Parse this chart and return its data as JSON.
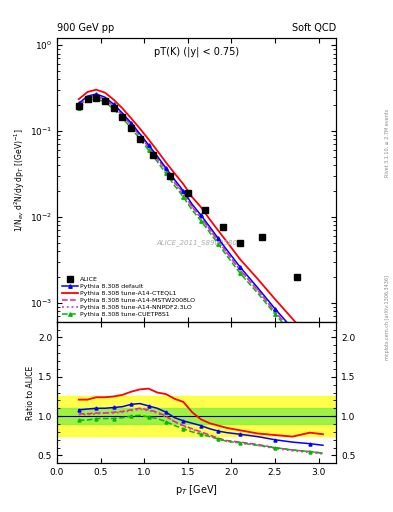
{
  "title_left": "900 GeV pp",
  "title_right": "Soft QCD",
  "inner_title": "pT(K) (|y| < 0.75)",
  "ylabel_main": "1/N$_{ev}$ d$^2$N/dy dp$_T$ [(GeV)$^{-1}$]",
  "ylabel_ratio": "Ratio to ALICE",
  "xlabel": "p$_T$ [GeV]",
  "watermark": "ALICE_2011_S8909580",
  "right_label_top": "Rivet 3.1.10, ≥ 2.7M events",
  "right_label_bottom": "mcplots.cern.ch [arXiv:1306.3436]",
  "alice_pt": [
    0.25,
    0.35,
    0.45,
    0.55,
    0.65,
    0.75,
    0.85,
    0.95,
    1.1,
    1.3,
    1.5,
    1.7,
    1.9,
    2.1,
    2.35,
    2.75
  ],
  "alice_y": [
    0.195,
    0.235,
    0.245,
    0.225,
    0.185,
    0.145,
    0.108,
    0.08,
    0.052,
    0.03,
    0.019,
    0.012,
    0.0077,
    0.005,
    0.0059,
    0.002
  ],
  "pythia_pt": [
    0.25,
    0.35,
    0.45,
    0.55,
    0.65,
    0.75,
    0.85,
    0.95,
    1.05,
    1.15,
    1.25,
    1.35,
    1.45,
    1.55,
    1.65,
    1.75,
    1.85,
    1.95,
    2.1,
    2.3,
    2.5,
    2.7,
    2.9,
    3.05
  ],
  "default_y": [
    0.21,
    0.255,
    0.27,
    0.248,
    0.205,
    0.162,
    0.124,
    0.093,
    0.069,
    0.051,
    0.037,
    0.027,
    0.02,
    0.014,
    0.0105,
    0.0077,
    0.0056,
    0.0041,
    0.0026,
    0.0015,
    0.00085,
    0.0005,
    0.0003,
    0.00018
  ],
  "cteql1_y": [
    0.235,
    0.285,
    0.303,
    0.28,
    0.232,
    0.184,
    0.141,
    0.107,
    0.08,
    0.059,
    0.043,
    0.032,
    0.024,
    0.017,
    0.013,
    0.0094,
    0.0069,
    0.0051,
    0.0032,
    0.0019,
    0.0011,
    0.00065,
    0.00039,
    0.00024
  ],
  "mstw_y": [
    0.2,
    0.242,
    0.256,
    0.235,
    0.194,
    0.153,
    0.117,
    0.088,
    0.065,
    0.048,
    0.035,
    0.025,
    0.019,
    0.013,
    0.0098,
    0.0072,
    0.0052,
    0.0038,
    0.0024,
    0.0014,
    0.00079,
    0.00046,
    0.00028,
    0.00017
  ],
  "nnpdf_y": [
    0.198,
    0.24,
    0.254,
    0.233,
    0.193,
    0.152,
    0.116,
    0.087,
    0.065,
    0.047,
    0.035,
    0.025,
    0.018,
    0.013,
    0.0097,
    0.0071,
    0.0052,
    0.0038,
    0.0024,
    0.0014,
    0.00078,
    0.00046,
    0.00027,
    0.00017
  ],
  "cuetp_y": [
    0.185,
    0.224,
    0.238,
    0.218,
    0.18,
    0.142,
    0.108,
    0.081,
    0.06,
    0.044,
    0.032,
    0.023,
    0.017,
    0.012,
    0.009,
    0.0066,
    0.0048,
    0.0035,
    0.0022,
    0.0013,
    0.00074,
    0.00043,
    0.00026,
    0.00016
  ],
  "ratio_pt": [
    0.25,
    0.35,
    0.45,
    0.55,
    0.65,
    0.75,
    0.85,
    0.95,
    1.05,
    1.15,
    1.25,
    1.35,
    1.45,
    1.55,
    1.65,
    1.75,
    1.85,
    1.95,
    2.1,
    2.3,
    2.5,
    2.7,
    2.9,
    3.05
  ],
  "ratio_default": [
    1.08,
    1.09,
    1.1,
    1.1,
    1.11,
    1.12,
    1.15,
    1.16,
    1.13,
    1.1,
    1.05,
    0.98,
    0.94,
    0.91,
    0.88,
    0.84,
    0.81,
    0.79,
    0.77,
    0.74,
    0.7,
    0.67,
    0.65,
    0.63
  ],
  "ratio_cteql1": [
    1.21,
    1.21,
    1.24,
    1.24,
    1.25,
    1.27,
    1.31,
    1.34,
    1.35,
    1.3,
    1.28,
    1.22,
    1.18,
    1.05,
    0.96,
    0.91,
    0.88,
    0.85,
    0.82,
    0.78,
    0.76,
    0.74,
    0.79,
    0.77
  ],
  "ratio_mstw": [
    1.03,
    1.03,
    1.04,
    1.04,
    1.05,
    1.06,
    1.08,
    1.1,
    1.08,
    1.05,
    1.0,
    0.93,
    0.88,
    0.84,
    0.8,
    0.76,
    0.72,
    0.69,
    0.67,
    0.64,
    0.6,
    0.57,
    0.55,
    0.53
  ],
  "ratio_nnpdf": [
    1.02,
    1.02,
    1.03,
    1.04,
    1.04,
    1.05,
    1.07,
    1.09,
    1.07,
    1.04,
    0.99,
    0.93,
    0.87,
    0.83,
    0.79,
    0.75,
    0.71,
    0.68,
    0.66,
    0.63,
    0.59,
    0.56,
    0.54,
    0.52
  ],
  "ratio_cuetp": [
    0.95,
    0.95,
    0.97,
    0.97,
    0.97,
    0.98,
    1.0,
    1.01,
    0.99,
    0.97,
    0.93,
    0.88,
    0.84,
    0.8,
    0.77,
    0.74,
    0.71,
    0.68,
    0.66,
    0.63,
    0.6,
    0.57,
    0.55,
    0.53
  ],
  "colors": {
    "alice": "black",
    "default": "blue",
    "cteql1": "red",
    "mstw": "#ff1493",
    "nnpdf": "#cc44cc",
    "cuetp": "#00bb00"
  },
  "ylim_main": [
    0.0006,
    1.2
  ],
  "ylim_ratio": [
    0.4,
    2.2
  ],
  "xlim": [
    0.0,
    3.2
  ],
  "yticks_ratio": [
    0.5,
    1.0,
    1.5,
    2.0
  ]
}
